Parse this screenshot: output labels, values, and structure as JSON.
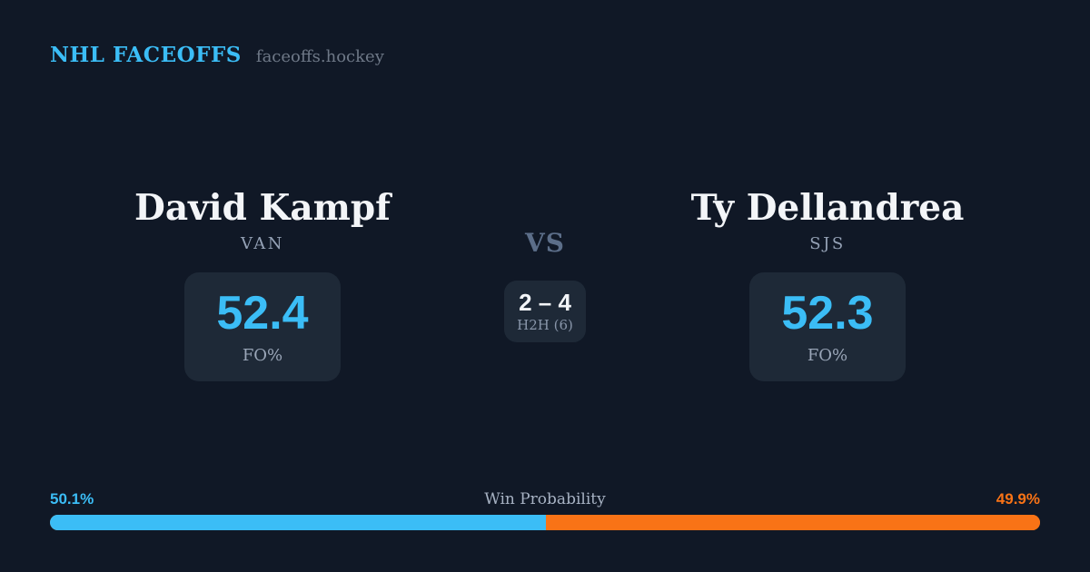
{
  "header": {
    "brand": "NHL FACEOFFS",
    "site": "faceoffs.hockey"
  },
  "matchup": {
    "vs_label": "VS",
    "h2h": {
      "score": "2 – 4",
      "label": "H2H (6)"
    },
    "players": [
      {
        "name": "David Kampf",
        "team": "VAN",
        "stat_value": "52.4",
        "stat_label": "FO%"
      },
      {
        "name": "Ty Dellandrea",
        "team": "SJS",
        "stat_value": "52.3",
        "stat_label": "FO%"
      }
    ]
  },
  "win_probability": {
    "title": "Win Probability",
    "left_label": "50.1%",
    "right_label": "49.9%",
    "left_pct": 50.1,
    "right_pct": 49.9,
    "left_color": "#3bbdf6",
    "right_color": "#f97316"
  },
  "colors": {
    "background": "#101826",
    "card_background": "#1e2937",
    "accent_blue": "#3bbdf6",
    "accent_orange": "#f97316",
    "text_primary": "#f3f5f8",
    "text_muted": "#94a1b5"
  },
  "chart_data": {
    "type": "bar",
    "title": "Win Probability",
    "categories": [
      "David Kampf (VAN)",
      "Ty Dellandrea (SJS)"
    ],
    "values": [
      50.1,
      49.9
    ],
    "unit": "%",
    "colors": [
      "#3bbdf6",
      "#f97316"
    ],
    "legend_position": "none",
    "related_stats": {
      "faceoff_pct": {
        "David Kampf": 52.4,
        "Ty Dellandrea": 52.3
      },
      "head_to_head": {
        "score": "2 – 4",
        "games": 6
      }
    }
  }
}
